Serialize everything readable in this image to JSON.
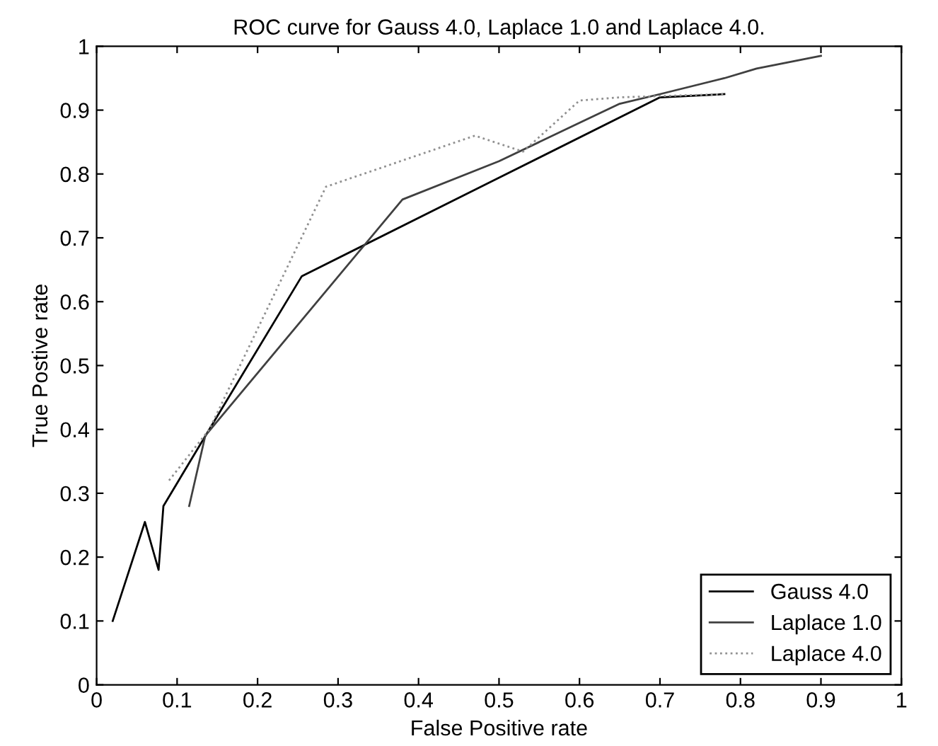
{
  "chart_data": {
    "type": "line",
    "title": "ROC curve for Gauss 4.0, Laplace 1.0 and Laplace 4.0.",
    "xlabel": "False Positive rate",
    "ylabel": "True Postive rate",
    "xlim": [
      0,
      1
    ],
    "ylim": [
      0,
      1
    ],
    "xticks": [
      0,
      0.1,
      0.2,
      0.3,
      0.4,
      0.5,
      0.6,
      0.7,
      0.8,
      0.9,
      1
    ],
    "yticks": [
      0,
      0.1,
      0.2,
      0.3,
      0.4,
      0.5,
      0.6,
      0.7,
      0.8,
      0.9,
      1
    ],
    "grid": false,
    "legend": "bottom right",
    "series": [
      {
        "name": "Gauss 4.0",
        "color": "#000000",
        "line_style": "solid",
        "x": [
          0.02,
          0.06,
          0.077,
          0.083,
          0.14,
          0.255,
          0.7,
          0.78
        ],
        "values": [
          0.1,
          0.255,
          0.18,
          0.28,
          0.4,
          0.64,
          0.92,
          0.925
        ]
      },
      {
        "name": "Laplace 1.0",
        "color": "#404040",
        "line_style": "solid",
        "x": [
          0.115,
          0.135,
          0.38,
          0.5,
          0.6,
          0.65,
          0.7,
          0.78,
          0.82,
          0.9
        ],
        "values": [
          0.28,
          0.39,
          0.76,
          0.82,
          0.88,
          0.91,
          0.925,
          0.95,
          0.965,
          0.985
        ]
      },
      {
        "name": "Laplace 4.0",
        "color": "#909090",
        "line_style": "dotted",
        "x": [
          0.09,
          0.14,
          0.285,
          0.47,
          0.53,
          0.6,
          0.65,
          0.78
        ],
        "values": [
          0.32,
          0.4,
          0.78,
          0.86,
          0.835,
          0.915,
          0.92,
          0.925
        ]
      }
    ]
  }
}
